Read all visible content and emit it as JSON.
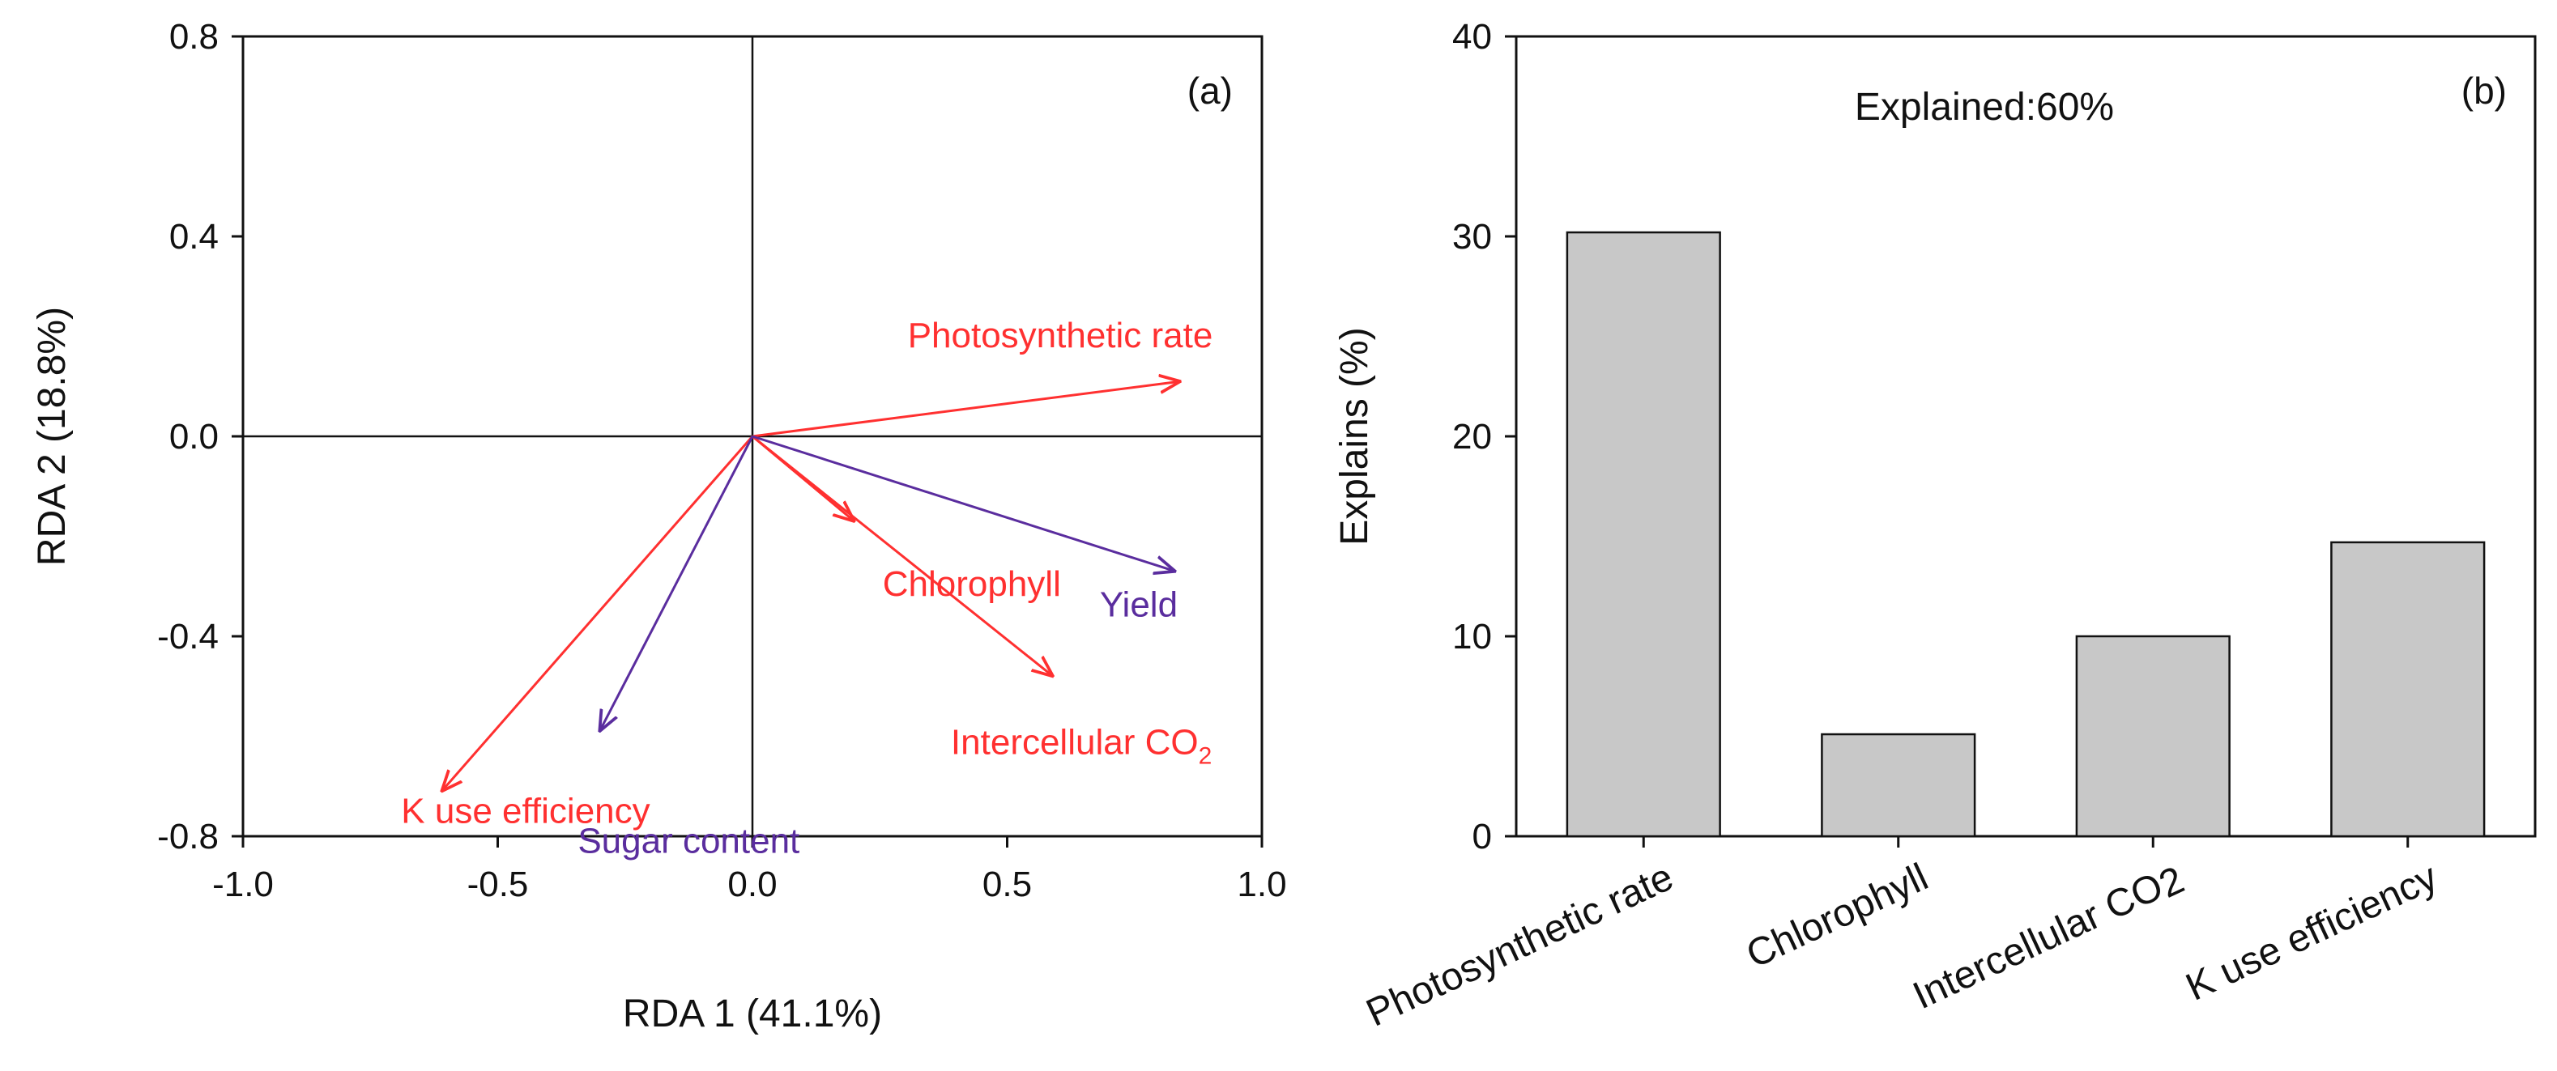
{
  "chart_data": [
    {
      "panel": "(a)",
      "type": "scatter",
      "subtype": "biplot-arrows",
      "xlabel": "RDA 1 (41.1%)",
      "ylabel": "RDA 2 (18.8%)",
      "xlim": [
        -1.0,
        1.0
      ],
      "ylim": [
        -0.8,
        0.8
      ],
      "xticks": [
        -1.0,
        -0.5,
        0.0,
        0.5,
        1.0
      ],
      "yticks": [
        -0.8,
        -0.4,
        0.0,
        0.4,
        0.8
      ],
      "tick_labels_x": [
        "-1.0",
        "-0.5",
        "0.0",
        "0.5",
        "1.0"
      ],
      "tick_labels_y": [
        "-0.8",
        "-0.4",
        "0.0",
        "0.4",
        "0.8"
      ],
      "reference_lines": {
        "x0": true,
        "y0": true
      },
      "vectors": [
        {
          "name": "Photosynthetic rate",
          "label": "Photosynthetic rate",
          "label_sub": "",
          "x": 0.84,
          "y": 0.11,
          "color": "#ff3030",
          "group": "explanatory"
        },
        {
          "name": "Chlorophyll",
          "label": "Chlorophyll",
          "label_sub": "",
          "x": 0.2,
          "y": -0.17,
          "color": "#ff3030",
          "group": "explanatory"
        },
        {
          "name": "Intercellular CO2",
          "label": "Intercellular CO",
          "label_sub": "2",
          "x": 0.59,
          "y": -0.48,
          "color": "#ff3030",
          "group": "explanatory"
        },
        {
          "name": "K use efficiency",
          "label": "K use efficiency",
          "label_sub": "",
          "x": -0.61,
          "y": -0.71,
          "color": "#ff3030",
          "group": "explanatory"
        },
        {
          "name": "Yield",
          "label": "Yield",
          "label_sub": "",
          "x": 0.83,
          "y": -0.27,
          "color": "#5a2d9e",
          "group": "response"
        },
        {
          "name": "Sugar content",
          "label": "Sugar content",
          "label_sub": "",
          "x": -0.3,
          "y": -0.59,
          "color": "#5a2d9e",
          "group": "response"
        }
      ]
    },
    {
      "panel": "(b)",
      "type": "bar",
      "categories": [
        "Photosynthetic rate",
        "Chlorophyll",
        "Intercellular CO",
        "K use efficiency"
      ],
      "category_subscripts": [
        "",
        "",
        "2",
        ""
      ],
      "values": [
        30.2,
        5.1,
        10.0,
        14.7
      ],
      "ylabel": "Explains (%)",
      "xlabel": "",
      "ylim": [
        0,
        40
      ],
      "yticks": [
        0,
        10,
        20,
        30,
        40
      ],
      "tick_labels_y": [
        "0",
        "10",
        "20",
        "30",
        "40"
      ],
      "annotation": "Explained:60%",
      "bar_color": "#c8c8c8"
    }
  ]
}
